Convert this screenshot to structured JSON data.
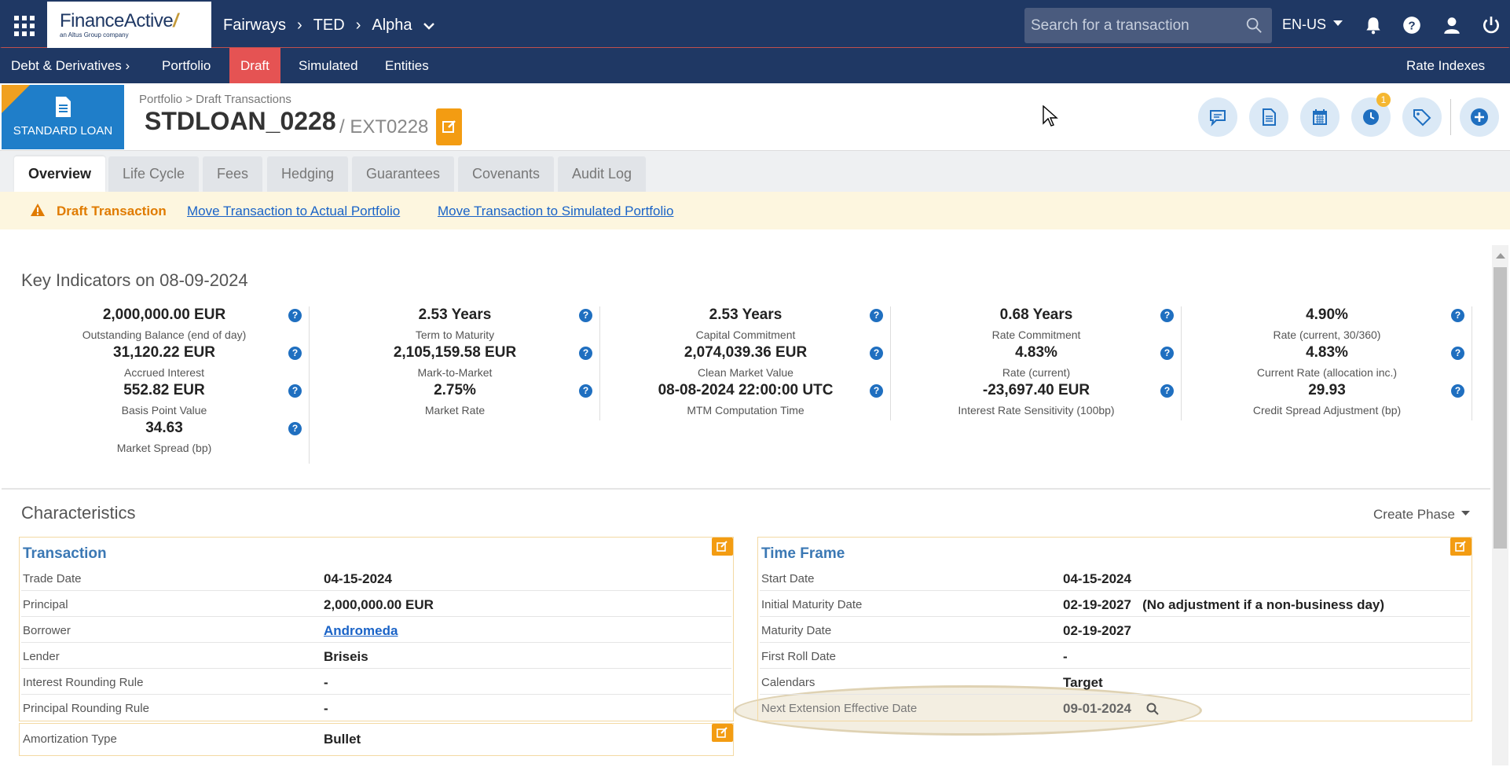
{
  "topbar": {
    "brand": "FinanceActive",
    "brand_sub": "an Altus Group company",
    "crumbs": [
      "Fairways",
      "TED",
      "Alpha"
    ],
    "search_placeholder": "Search for a transaction",
    "language": "EN-US"
  },
  "navbar": {
    "items": [
      "Debt & Derivatives",
      "Portfolio",
      "Draft",
      "Simulated",
      "Entities"
    ],
    "active": "Draft",
    "right_item": "Rate Indexes"
  },
  "header": {
    "type_label": "STANDARD LOAN",
    "breadcrumb": "Portfolio > Draft Transactions",
    "title": "STDLOAN_0228",
    "subtitle": "/ EXT0228",
    "history_count": "1"
  },
  "tabs": [
    "Overview",
    "Life Cycle",
    "Fees",
    "Hedging",
    "Guarantees",
    "Covenants",
    "Audit Log"
  ],
  "banner": {
    "title": "Draft Transaction",
    "link_actual": "Move Transaction to Actual Portfolio",
    "link_simulated": "Move Transaction to Simulated Portfolio"
  },
  "key_indicators": {
    "title": "Key Indicators on 08-09-2024",
    "columns": [
      [
        {
          "value": "2,000,000.00 EUR",
          "label": "Outstanding Balance (end of day)"
        },
        {
          "value": "31,120.22 EUR",
          "label": "Accrued Interest"
        },
        {
          "value": "552.82 EUR",
          "label": "Basis Point Value"
        },
        {
          "value": "34.63",
          "label": "Market Spread (bp)"
        }
      ],
      [
        {
          "value": "2.53 Years",
          "label": "Term to Maturity"
        },
        {
          "value": "2,105,159.58 EUR",
          "label": "Mark-to-Market"
        },
        {
          "value": "2.75%",
          "label": "Market Rate"
        }
      ],
      [
        {
          "value": "2.53 Years",
          "label": "Capital Commitment"
        },
        {
          "value": "2,074,039.36 EUR",
          "label": "Clean Market Value"
        },
        {
          "value": "08-08-2024 22:00:00 UTC",
          "label": "MTM Computation Time"
        }
      ],
      [
        {
          "value": "0.68 Years",
          "label": "Rate Commitment"
        },
        {
          "value": "4.83%",
          "label": "Rate (current)"
        },
        {
          "value": "-23,697.40 EUR",
          "label": "Interest Rate Sensitivity (100bp)"
        }
      ],
      [
        {
          "value": "4.90%",
          "label": "Rate (current, 30/360)"
        },
        {
          "value": "4.83%",
          "label": "Current Rate (allocation inc.)"
        },
        {
          "value": "29.93",
          "label": "Credit Spread Adjustment (bp)"
        }
      ]
    ]
  },
  "characteristics": {
    "title": "Characteristics",
    "create_phase": "Create Phase",
    "transaction": {
      "title": "Transaction",
      "rows": [
        {
          "key": "Trade Date",
          "value": "04-15-2024"
        },
        {
          "key": "Principal",
          "value": "2,000,000.00 EUR"
        },
        {
          "key": "Borrower",
          "value": "Andromeda"
        },
        {
          "key": "Lender",
          "value": "Briseis"
        },
        {
          "key": "Interest Rounding Rule",
          "value": "-"
        },
        {
          "key": "Principal Rounding Rule",
          "value": "-"
        }
      ],
      "amortization": {
        "key": "Amortization Type",
        "value": "Bullet"
      }
    },
    "time_frame": {
      "title": "Time Frame",
      "rows": [
        {
          "key": "Start Date",
          "value": "04-15-2024"
        },
        {
          "key": "Initial Maturity Date",
          "value": "02-19-2027   (No adjustment if a non-business day)"
        },
        {
          "key": "Maturity Date",
          "value": "02-19-2027"
        },
        {
          "key": "First Roll Date",
          "value": "-"
        },
        {
          "key": "Calendars",
          "value": "Target"
        },
        {
          "key": "Next Extension Effective Date",
          "value": "09-01-2024"
        }
      ]
    }
  },
  "colors": {
    "navy": "#1f3864",
    "draft_red": "#e55353",
    "badge_blue": "#1f7ec9",
    "accent_orange": "#f39c12",
    "link_blue": "#1a63c7"
  }
}
